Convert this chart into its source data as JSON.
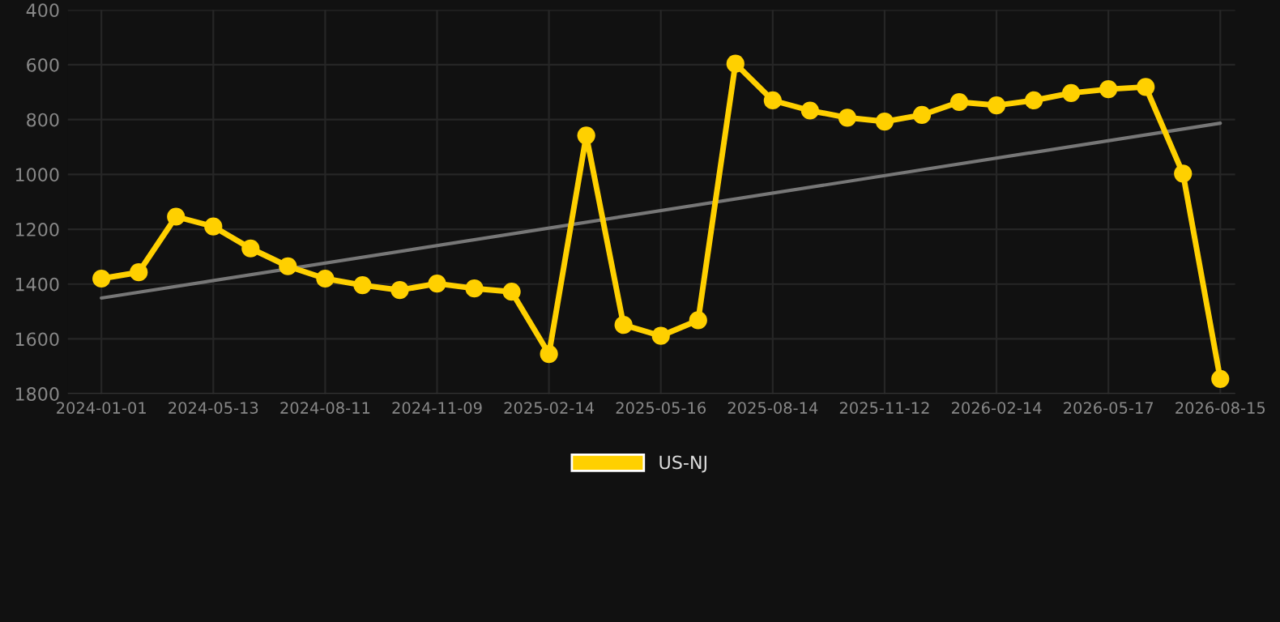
{
  "chart_data": {
    "type": "line",
    "categories": [
      "2024-01-01",
      null,
      null,
      "2024-05-13",
      null,
      null,
      "2024-08-11",
      null,
      null,
      "2024-11-09",
      null,
      null,
      "2025-02-14",
      null,
      null,
      "2025-05-16",
      null,
      null,
      "2025-08-14",
      null,
      null,
      "2025-11-12",
      null,
      null,
      "2026-02-14",
      null,
      null,
      "2026-05-17",
      null,
      null,
      "2026-08-15"
    ],
    "series": [
      {
        "name": "US-NJ",
        "color": "#ffd000",
        "marker": "circle",
        "values": [
          1380,
          1357,
          1154,
          1190,
          1270,
          1335,
          1380,
          1404,
          1422,
          1398,
          1416,
          1428,
          1655,
          858,
          1549,
          1589,
          1532,
          596,
          730,
          767,
          793,
          807,
          783,
          736,
          748,
          730,
          703,
          689,
          681,
          997,
          1746
        ]
      },
      {
        "type": "line",
        "color": "#777777",
        "marker": "none",
        "values": [
          1451,
          null,
          null,
          null,
          null,
          null,
          null,
          null,
          null,
          null,
          null,
          null,
          null,
          null,
          null,
          null,
          null,
          null,
          null,
          null,
          null,
          null,
          null,
          null,
          null,
          null,
          null,
          null,
          null,
          null,
          813
        ]
      }
    ],
    "ylim": [
      1800,
      400
    ],
    "yticks": [
      400,
      600,
      800,
      1000,
      1200,
      1400,
      1600,
      1800
    ],
    "grid": true,
    "legend": "bottom",
    "line_style": "solid"
  }
}
